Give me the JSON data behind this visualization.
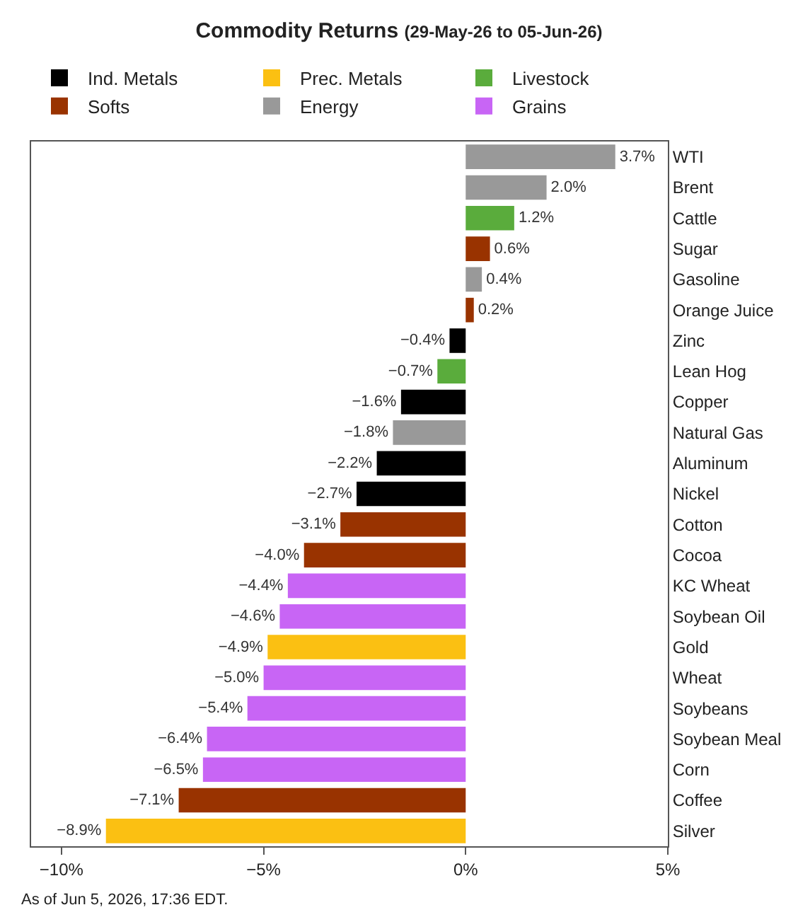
{
  "chart_data": {
    "type": "bar",
    "orientation": "horizontal",
    "title": "Commodity Returns",
    "subtitle": "(29-May-26 to 05-Jun-26)",
    "categories": [
      "WTI",
      "Brent",
      "Cattle",
      "Sugar",
      "Gasoline",
      "Orange Juice",
      "Zinc",
      "Lean Hog",
      "Copper",
      "Natural Gas",
      "Aluminum",
      "Nickel",
      "Cotton",
      "Cocoa",
      "KC Wheat",
      "Soybean Oil",
      "Gold",
      "Wheat",
      "Soybeans",
      "Soybean Meal",
      "Corn",
      "Coffee",
      "Silver"
    ],
    "series": [
      {
        "name": "Ind. Metals",
        "color": "#000000",
        "values": [
          null,
          null,
          null,
          null,
          null,
          null,
          -0.4,
          null,
          -1.6,
          null,
          -2.2,
          -2.7,
          null,
          null,
          null,
          null,
          null,
          null,
          null,
          null,
          null,
          null,
          null
        ],
        "value_labels": [
          null,
          null,
          null,
          null,
          null,
          null,
          "−0.4%",
          null,
          "−1.6%",
          null,
          "−2.2%",
          "−2.7%",
          null,
          null,
          null,
          null,
          null,
          null,
          null,
          null,
          null,
          null,
          null
        ]
      },
      {
        "name": "Prec. Metals",
        "color": "#fbc012",
        "values": [
          null,
          null,
          null,
          null,
          null,
          null,
          null,
          null,
          null,
          null,
          null,
          null,
          null,
          null,
          null,
          null,
          -4.9,
          null,
          null,
          null,
          null,
          null,
          -8.9
        ],
        "value_labels": [
          null,
          null,
          null,
          null,
          null,
          null,
          null,
          null,
          null,
          null,
          null,
          null,
          null,
          null,
          null,
          null,
          "−4.9%",
          null,
          null,
          null,
          null,
          null,
          "−8.9%"
        ]
      },
      {
        "name": "Livestock",
        "color": "#5aac3c",
        "values": [
          null,
          null,
          1.2,
          null,
          null,
          null,
          null,
          -0.7,
          null,
          null,
          null,
          null,
          null,
          null,
          null,
          null,
          null,
          null,
          null,
          null,
          null,
          null,
          null
        ],
        "value_labels": [
          null,
          null,
          "1.2%",
          null,
          null,
          null,
          null,
          "−0.7%",
          null,
          null,
          null,
          null,
          null,
          null,
          null,
          null,
          null,
          null,
          null,
          null,
          null,
          null,
          null
        ]
      },
      {
        "name": "Softs",
        "color": "#993300",
        "values": [
          null,
          null,
          null,
          0.6,
          null,
          0.2,
          null,
          null,
          null,
          null,
          null,
          null,
          -3.1,
          -4.0,
          null,
          null,
          null,
          null,
          null,
          null,
          null,
          -7.1,
          null
        ],
        "value_labels": [
          null,
          null,
          null,
          "0.6%",
          null,
          "0.2%",
          null,
          null,
          null,
          null,
          null,
          null,
          "−3.1%",
          "−4.0%",
          null,
          null,
          null,
          null,
          null,
          null,
          null,
          "−7.1%",
          null
        ]
      },
      {
        "name": "Energy",
        "color": "#999999",
        "values": [
          3.7,
          2.0,
          null,
          null,
          0.4,
          null,
          null,
          null,
          null,
          -1.8,
          null,
          null,
          null,
          null,
          null,
          null,
          null,
          null,
          null,
          null,
          null,
          null,
          null
        ],
        "value_labels": [
          "3.7%",
          "2.0%",
          null,
          null,
          "0.4%",
          null,
          null,
          null,
          null,
          "−1.8%",
          null,
          null,
          null,
          null,
          null,
          null,
          null,
          null,
          null,
          null,
          null,
          null,
          null
        ]
      },
      {
        "name": "Grains",
        "color": "#c865f5",
        "values": [
          null,
          null,
          null,
          null,
          null,
          null,
          null,
          null,
          null,
          null,
          null,
          null,
          null,
          null,
          -4.4,
          -4.6,
          null,
          -5.0,
          -5.4,
          -6.4,
          -6.5,
          null,
          null
        ],
        "value_labels": [
          null,
          null,
          null,
          null,
          null,
          null,
          null,
          null,
          null,
          null,
          null,
          null,
          null,
          null,
          "−4.4%",
          "−4.6%",
          null,
          "−5.0%",
          "−5.4%",
          "−6.4%",
          "−6.5%",
          null,
          null
        ]
      }
    ],
    "xlim": [
      -10.75,
      5
    ],
    "xticks": [
      {
        "value": -10,
        "label": "−10%"
      },
      {
        "value": -5,
        "label": "−5%"
      },
      {
        "value": 0,
        "label": "0%"
      },
      {
        "value": 5,
        "label": "5%"
      }
    ],
    "grid": false,
    "legend": "top",
    "annotations": [
      "As of Jun 5, 2026, 17:36 EDT."
    ]
  }
}
